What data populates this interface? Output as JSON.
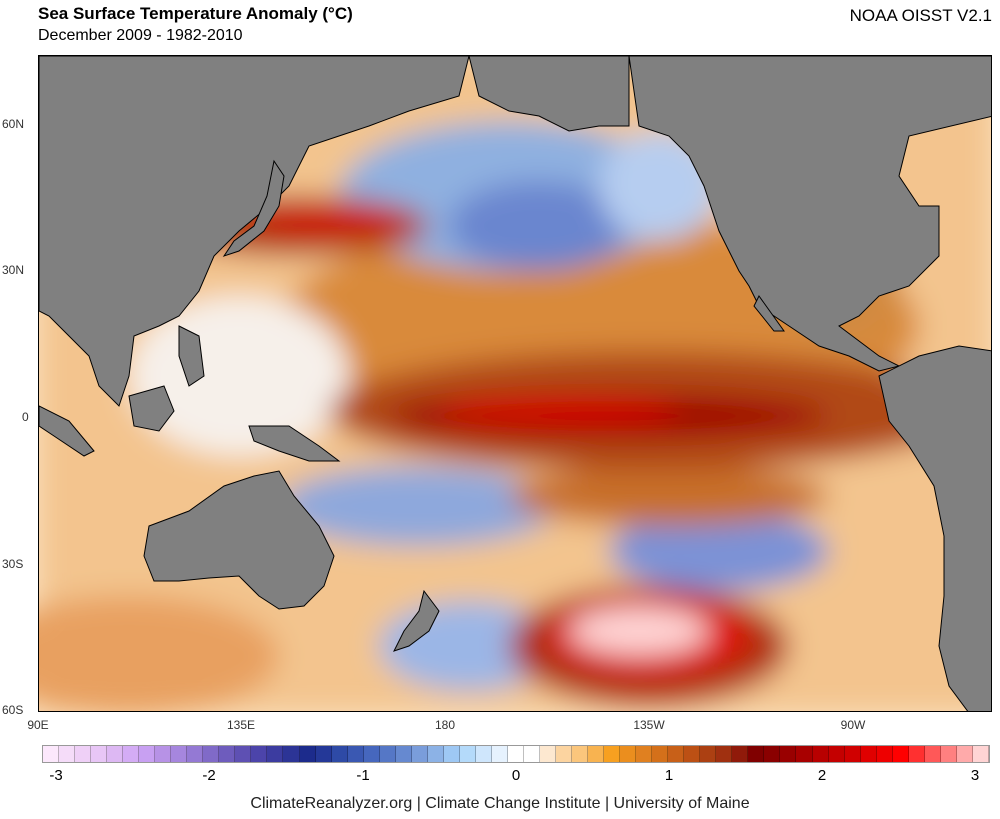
{
  "header": {
    "title": "Sea Surface Temperature Anomaly (°C)",
    "subtitle": "December 2009 - 1982-2010",
    "dataset": "NOAA OISST V2.1"
  },
  "map": {
    "lat_labels": [
      "60N",
      "30N",
      "0",
      "30S",
      "60S"
    ],
    "lon_labels": [
      "90E",
      "135E",
      "180",
      "135W",
      "90W"
    ],
    "land_color": "#808080"
  },
  "colorbar": {
    "ticks": [
      "-3",
      "-2",
      "-1",
      "0",
      "1",
      "2",
      "3"
    ],
    "colors": [
      "#fce8fc",
      "#f5dcf9",
      "#efd0f7",
      "#e8c6f6",
      "#ddb8f3",
      "#d4acf5",
      "#c8a0f2",
      "#b792e6",
      "#a686de",
      "#9479d4",
      "#806ac8",
      "#6e5cbd",
      "#5e50b3",
      "#4c44aa",
      "#3c3ca0",
      "#2c3496",
      "#1c2b8c",
      "#243898",
      "#2e4aa6",
      "#3a58b2",
      "#4667be",
      "#5577c6",
      "#6689d0",
      "#7a9ddb",
      "#8cb2e6",
      "#9ec8f4",
      "#b4dafa",
      "#cfe6fc",
      "#e6f2fe",
      "#ffffff",
      "#ffffff",
      "#fde8d0",
      "#fcd4a0",
      "#fbc67c",
      "#f8b350",
      "#f7a020",
      "#eb8e1e",
      "#e08020",
      "#d4701a",
      "#c86018",
      "#bc5014",
      "#ac4012",
      "#a03010",
      "#901a0a",
      "#800000",
      "#8a0000",
      "#990000",
      "#a80000",
      "#b80000",
      "#c40000",
      "#d00000",
      "#e00000",
      "#ee0000",
      "#ff0000",
      "#ff3030",
      "#ff5858",
      "#ff8080",
      "#ffaaaa",
      "#ffd4d4"
    ]
  },
  "footer": {
    "credit": "ClimateReanalyzer.org | Climate Change Institute | University of Maine"
  }
}
